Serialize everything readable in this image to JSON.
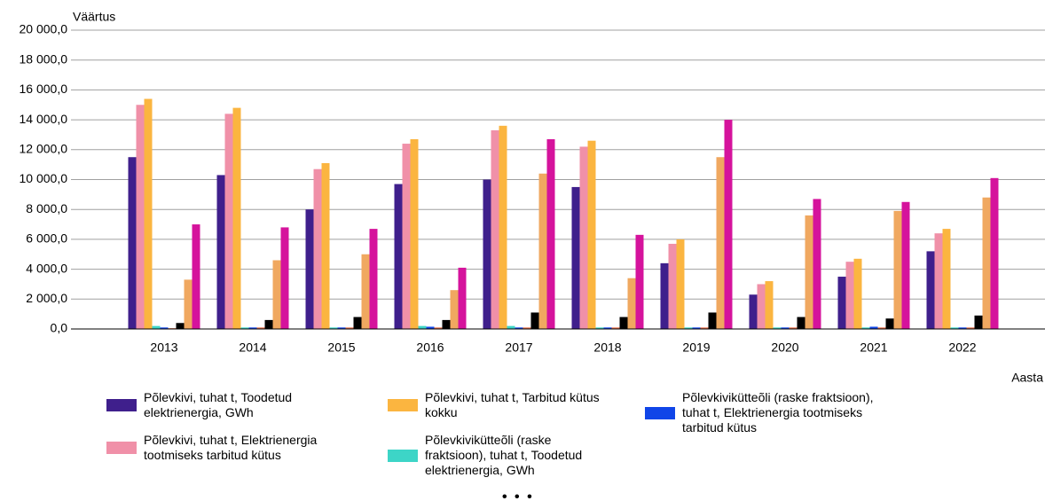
{
  "chart_data": {
    "type": "bar",
    "y_label": "Väärtus",
    "x_label": "Aasta",
    "legend_more": "• • •",
    "categories": [
      "2013",
      "2014",
      "2015",
      "2016",
      "2017",
      "2018",
      "2019",
      "2020",
      "2021",
      "2022"
    ],
    "ylim": [
      0,
      20000
    ],
    "yticks": [
      {
        "value": 0,
        "label": "0,0"
      },
      {
        "value": 2000,
        "label": "2 000,0"
      },
      {
        "value": 4000,
        "label": "4 000,0"
      },
      {
        "value": 6000,
        "label": "6 000,0"
      },
      {
        "value": 8000,
        "label": "8 000,0"
      },
      {
        "value": 10000,
        "label": "10 000,0"
      },
      {
        "value": 12000,
        "label": "12 000,0"
      },
      {
        "value": 14000,
        "label": "14 000,0"
      },
      {
        "value": 16000,
        "label": "16 000,0"
      },
      {
        "value": 18000,
        "label": "18 000,0"
      },
      {
        "value": 20000,
        "label": "20 000,0"
      }
    ],
    "grid": true,
    "series": [
      {
        "name": "Põlevkivi, tuhat t, Toodetud elektrienergia, GWh",
        "color": "#3f1f8c",
        "values": [
          11500,
          10300,
          8000,
          9700,
          10000,
          9500,
          4400,
          2300,
          3500,
          5200
        ]
      },
      {
        "name": "Põlevkivi, tuhat t, Elektrienergia tootmiseks tarbitud kütus",
        "color": "#f090a8",
        "values": [
          15000,
          14400,
          10700,
          12400,
          13300,
          12200,
          5700,
          3000,
          4500,
          6400
        ]
      },
      {
        "name": "Põlevkivi, tuhat t, Tarbitud kütus kokku",
        "color": "#fbb540",
        "values": [
          15400,
          14800,
          11100,
          12700,
          13600,
          12600,
          6000,
          3200,
          4700,
          6700
        ]
      },
      {
        "name": "Põlevkivikütteõli (raske fraktsioon), tuhat t, Toodetud elektrienergia, GWh",
        "color": "#3dd5c7",
        "values": [
          200,
          100,
          100,
          200,
          200,
          100,
          100,
          100,
          100,
          100
        ]
      },
      {
        "name": "Põlevkivikütteõli (raske fraktsioon), tuhat t, Elektrienergia tootmiseks tarbitud kütus",
        "color": "#1045e8",
        "values": [
          100,
          100,
          100,
          150,
          100,
          100,
          100,
          100,
          150,
          100
        ]
      },
      {
        "color": "#e8704a",
        "values": [
          50,
          100,
          100,
          100,
          100,
          100,
          100,
          100,
          100,
          100
        ]
      },
      {
        "color": "#000000",
        "values": [
          400,
          600,
          800,
          600,
          1100,
          800,
          1100,
          800,
          700,
          900
        ]
      },
      {
        "color": "#f0a860",
        "values": [
          3300,
          4600,
          5000,
          2600,
          10400,
          3400,
          11500,
          7600,
          7900,
          8800
        ]
      },
      {
        "color": "#d5139c",
        "values": [
          7000,
          6800,
          6700,
          4100,
          12700,
          6300,
          14000,
          8700,
          8500,
          10100
        ]
      }
    ]
  }
}
